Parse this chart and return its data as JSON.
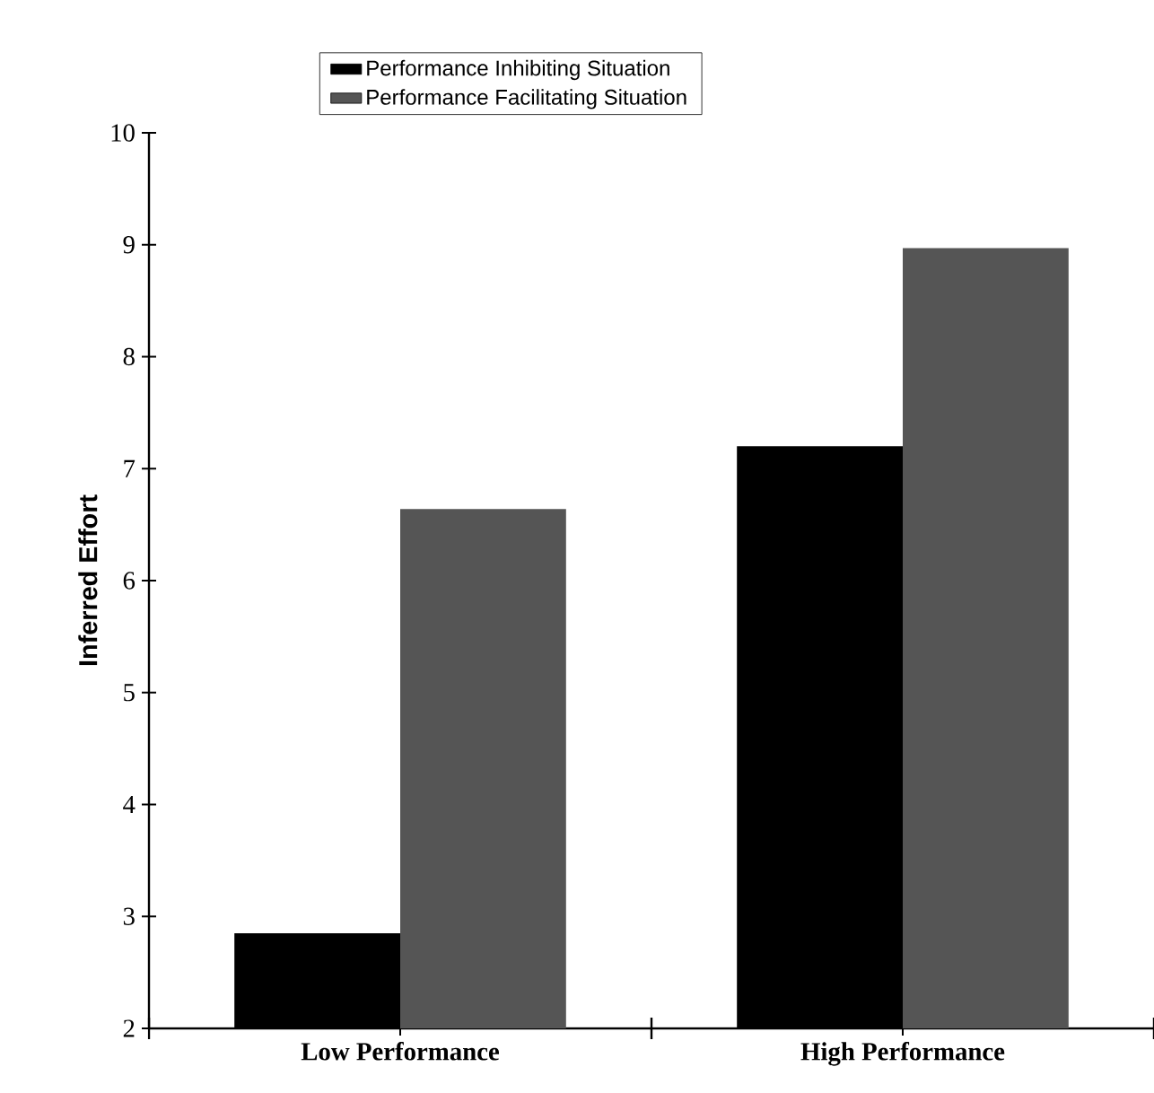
{
  "chart_data": {
    "type": "bar",
    "ylabel": "Inferred Effort",
    "categories": [
      "Low Performance",
      "High Performance"
    ],
    "series": [
      {
        "name": "Performance Inhibiting Situation",
        "color": "#000000",
        "values": [
          2.85,
          7.2
        ]
      },
      {
        "name": "Performance Facilitating Situation",
        "color": "#555555",
        "values": [
          6.64,
          8.97
        ]
      }
    ],
    "ylim": [
      2,
      10
    ],
    "yticks": [
      2,
      3,
      4,
      5,
      6,
      7,
      8,
      9,
      10
    ],
    "grid": false,
    "legend": "top"
  }
}
